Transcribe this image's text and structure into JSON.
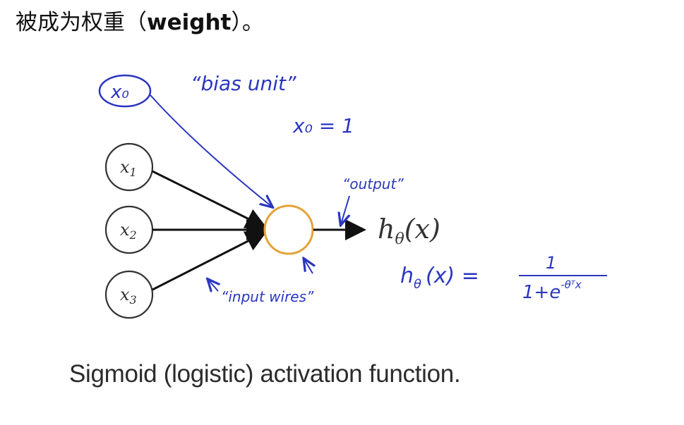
{
  "heading": {
    "prefix": "被成为权重（",
    "bold": "weight",
    "suffix": "）。"
  },
  "diagram": {
    "bias_node": "x₀",
    "bias_label": "“bias unit”",
    "bias_value": "x₀ = 1",
    "inputs": [
      "x",
      "x",
      "x"
    ],
    "input_subscripts": [
      "1",
      "2",
      "3"
    ],
    "output_label": "“output”",
    "hypothesis": "h",
    "hypothesis_sub": "θ",
    "hypothesis_arg": "(x)",
    "formula_lhs": "h",
    "formula_sub": "θ",
    "formula_mid": "(x) =",
    "formula_num": "1",
    "formula_den": "1+e",
    "formula_exp": "-θᵀx",
    "input_wires_label": "“input wires”"
  },
  "caption": "Sigmoid (logistic) activation function."
}
